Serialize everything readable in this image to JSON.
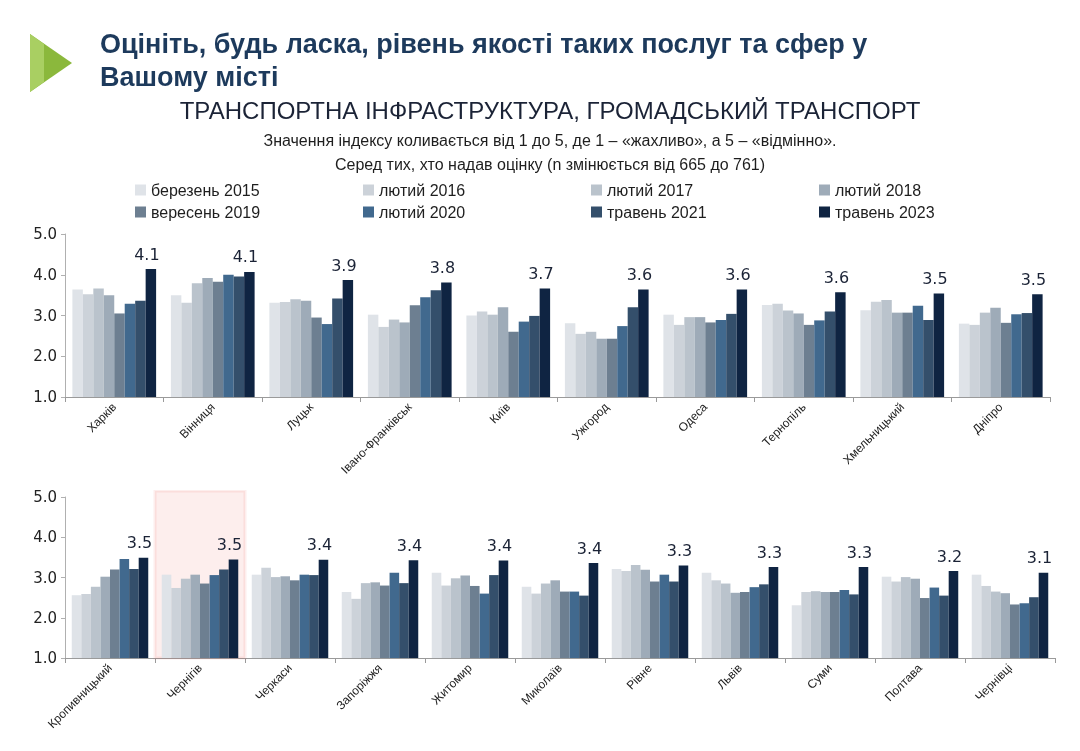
{
  "chart_data": [
    {
      "type": "bar",
      "title": "Оцініть, будь ласка, рівень якості таких послуг та сфер у Вашому місті",
      "subtitle": "ТРАНСПОРТНА ІНФРАСТРУКТУРА, ГРОМАДСЬКИЙ ТРАНСПОРТ",
      "annotations": [
        "Значення індексу коливається від 1 до 5, де 1 – «жахливо», а 5 – «відмінно».",
        "Серед тих, хто надав оцінку (n змінюється від 665 до 761)"
      ],
      "categories": [
        "Харків",
        "Вінниця",
        "Луцьк",
        "Івано-Франківськ",
        "Київ",
        "Ужгород",
        "Одеса",
        "Тернопіль",
        "Хмельницький",
        "Дніпро"
      ],
      "series": [
        {
          "name": "березень 2015",
          "color": "#dfe3e8",
          "values": [
            3.64,
            3.5,
            3.31,
            3.02,
            3.0,
            2.81,
            3.02,
            3.26,
            3.13,
            2.8
          ]
        },
        {
          "name": "лютий 2016",
          "color": "#ccd2d9",
          "values": [
            3.52,
            3.31,
            3.33,
            2.72,
            3.1,
            2.55,
            2.77,
            3.29,
            3.34,
            2.77
          ]
        },
        {
          "name": "лютий 2017",
          "color": "#bac3cc",
          "values": [
            3.66,
            3.79,
            3.4,
            2.9,
            3.02,
            2.6,
            2.96,
            3.12,
            3.38,
            3.07
          ]
        },
        {
          "name": "лютий 2018",
          "color": "#9eabb8",
          "values": [
            3.5,
            3.92,
            3.36,
            2.83,
            3.2,
            2.43,
            2.96,
            3.05,
            3.07,
            3.19
          ]
        },
        {
          "name": "вересень 2019",
          "color": "#6d7f91",
          "values": [
            3.05,
            3.83,
            2.95,
            3.25,
            2.6,
            2.43,
            2.83,
            2.77,
            3.07,
            2.82
          ]
        },
        {
          "name": "лютий 2020",
          "color": "#41698e",
          "values": [
            3.29,
            4.0,
            2.79,
            3.45,
            2.85,
            2.74,
            2.89,
            2.88,
            3.24,
            3.03
          ]
        },
        {
          "name": "травень 2021",
          "color": "#344f6b",
          "values": [
            3.36,
            3.96,
            3.42,
            3.62,
            2.99,
            3.2,
            3.04,
            3.1,
            2.89,
            3.06
          ]
        },
        {
          "name": "травень 2023",
          "color": "#0f2442",
          "values": [
            4.14,
            4.07,
            3.87,
            3.81,
            3.66,
            3.64,
            3.64,
            3.57,
            3.54,
            3.52
          ],
          "value_labels": [
            "4.1",
            "4.1",
            "3.9",
            "3.8",
            "3.7",
            "3.6",
            "3.6",
            "3.6",
            "3.5",
            "3.5"
          ]
        }
      ],
      "ylim": [
        1,
        5
      ],
      "yticks": [
        {
          "value": 1,
          "label": "1.0"
        },
        {
          "value": 2,
          "label": "2.0"
        },
        {
          "value": 3,
          "label": "3.0"
        },
        {
          "value": 4,
          "label": "4.0"
        },
        {
          "value": 5,
          "label": "5.0"
        }
      ],
      "grid": false,
      "legend": "top"
    },
    {
      "type": "bar",
      "categories": [
        "Кропивницький",
        "Чернігів",
        "Черкаси",
        "Запоріжжя",
        "Житомир",
        "Миколаїв",
        "Рівне",
        "Львів",
        "Суми",
        "Полтава",
        "Чернівці"
      ],
      "series": [
        {
          "color": "#dfe3e8",
          "values": [
            2.56,
            3.07,
            3.07,
            2.64,
            3.12,
            2.77,
            3.21,
            3.12,
            2.31,
            3.02,
            3.07
          ]
        },
        {
          "color": "#ccd2d9",
          "values": [
            2.59,
            2.74,
            3.24,
            2.47,
            2.8,
            2.6,
            3.16,
            2.93,
            2.64,
            2.9,
            2.79
          ]
        },
        {
          "color": "#bac3cc",
          "values": [
            2.77,
            2.97,
            3.01,
            2.86,
            2.98,
            2.85,
            3.31,
            2.85,
            2.66,
            3.01,
            2.65
          ]
        },
        {
          "color": "#9eabb8",
          "values": [
            3.02,
            3.07,
            3.03,
            2.88,
            3.05,
            2.93,
            3.19,
            2.62,
            2.64,
            2.97,
            2.61
          ]
        },
        {
          "color": "#6d7f91",
          "values": [
            3.2,
            2.85,
            2.93,
            2.8,
            2.79,
            2.65,
            2.9,
            2.64,
            2.64,
            2.49,
            2.33
          ]
        },
        {
          "color": "#41698e",
          "values": [
            3.46,
            3.06,
            3.07,
            3.12,
            2.6,
            2.65,
            3.07,
            2.76,
            2.69,
            2.75,
            2.36
          ]
        },
        {
          "color": "#344f6b",
          "values": [
            3.21,
            3.2,
            3.06,
            2.86,
            3.06,
            2.55,
            2.9,
            2.83,
            2.58,
            2.55,
            2.51
          ]
        },
        {
          "color": "#0f2442",
          "values": [
            3.49,
            3.45,
            3.44,
            3.43,
            3.42,
            3.36,
            3.3,
            3.26,
            3.26,
            3.16,
            3.12
          ],
          "value_labels": [
            "3.5",
            "3.5",
            "3.4",
            "3.4",
            "3.4",
            "3.4",
            "3.3",
            "3.3",
            "3.3",
            "3.2",
            "3.1"
          ]
        }
      ],
      "ylim": [
        1,
        5
      ],
      "yticks": [
        {
          "value": 1,
          "label": "1.0"
        },
        {
          "value": 2,
          "label": "2.0"
        },
        {
          "value": 3,
          "label": "3.0"
        },
        {
          "value": 4,
          "label": "4.0"
        },
        {
          "value": 5,
          "label": "5.0"
        }
      ],
      "grid": false,
      "legend": false,
      "bands": [
        {
          "axis": "x",
          "from": "Чернігів",
          "to": "Чернігів",
          "color": "#e3201c"
        }
      ]
    }
  ]
}
